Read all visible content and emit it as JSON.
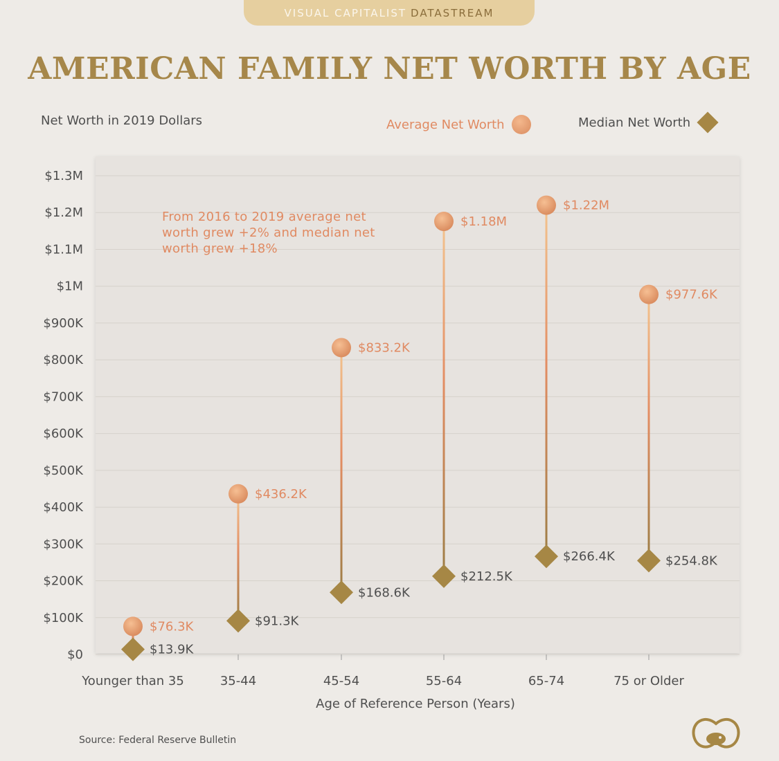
{
  "brand": {
    "part1": "VISUAL CAPITALIST",
    "part2": "DATASTREAM"
  },
  "source": "Source: Federal Reserve Bulletin",
  "colors": {
    "average": "#e08a62",
    "median": "#a68745",
    "title": "#a6874a"
  },
  "chart_data": {
    "type": "dumbbell",
    "title": "AMERICAN FAMILY NET WORTH BY AGE",
    "subtitle": "Net Worth in 2019 Dollars",
    "xlabel": "Age of Reference Person (Years)",
    "ylabel": "",
    "ylim": [
      0,
      1300000
    ],
    "yticks": [
      {
        "value": 0,
        "label": "$0"
      },
      {
        "value": 100000,
        "label": "$100K"
      },
      {
        "value": 200000,
        "label": "$200K"
      },
      {
        "value": 300000,
        "label": "$300K"
      },
      {
        "value": 400000,
        "label": "$400K"
      },
      {
        "value": 500000,
        "label": "$500K"
      },
      {
        "value": 600000,
        "label": "$600K"
      },
      {
        "value": 700000,
        "label": "$700K"
      },
      {
        "value": 800000,
        "label": "$800K"
      },
      {
        "value": 900000,
        "label": "$900K"
      },
      {
        "value": 1000000,
        "label": "$1M"
      },
      {
        "value": 1100000,
        "label": "$1.1M"
      },
      {
        "value": 1200000,
        "label": "$1.2M"
      },
      {
        "value": 1300000,
        "label": "$1.3M"
      }
    ],
    "categories": [
      "Younger than 35",
      "35-44",
      "45-54",
      "55-64",
      "65-74",
      "75 or Older"
    ],
    "series": [
      {
        "name": "Average Net Worth",
        "marker": "circle",
        "values": [
          76300,
          436200,
          833200,
          1176000,
          1220000,
          977600
        ],
        "labels": [
          "$76.3K",
          "$436.2K",
          "$833.2K",
          "$1.18M",
          "$1.22M",
          "$977.6K"
        ]
      },
      {
        "name": "Median Net Worth",
        "marker": "diamond",
        "values": [
          13900,
          91300,
          168600,
          212500,
          266400,
          254800
        ],
        "labels": [
          "$13.9K",
          "$91.3K",
          "$168.6K",
          "$212.5K",
          "$266.4K",
          "$254.8K"
        ]
      }
    ],
    "annotation": "From 2016 to 2019 average net worth grew +2% and median net worth grew +18%",
    "legend_position": "top-right",
    "grid": true
  }
}
